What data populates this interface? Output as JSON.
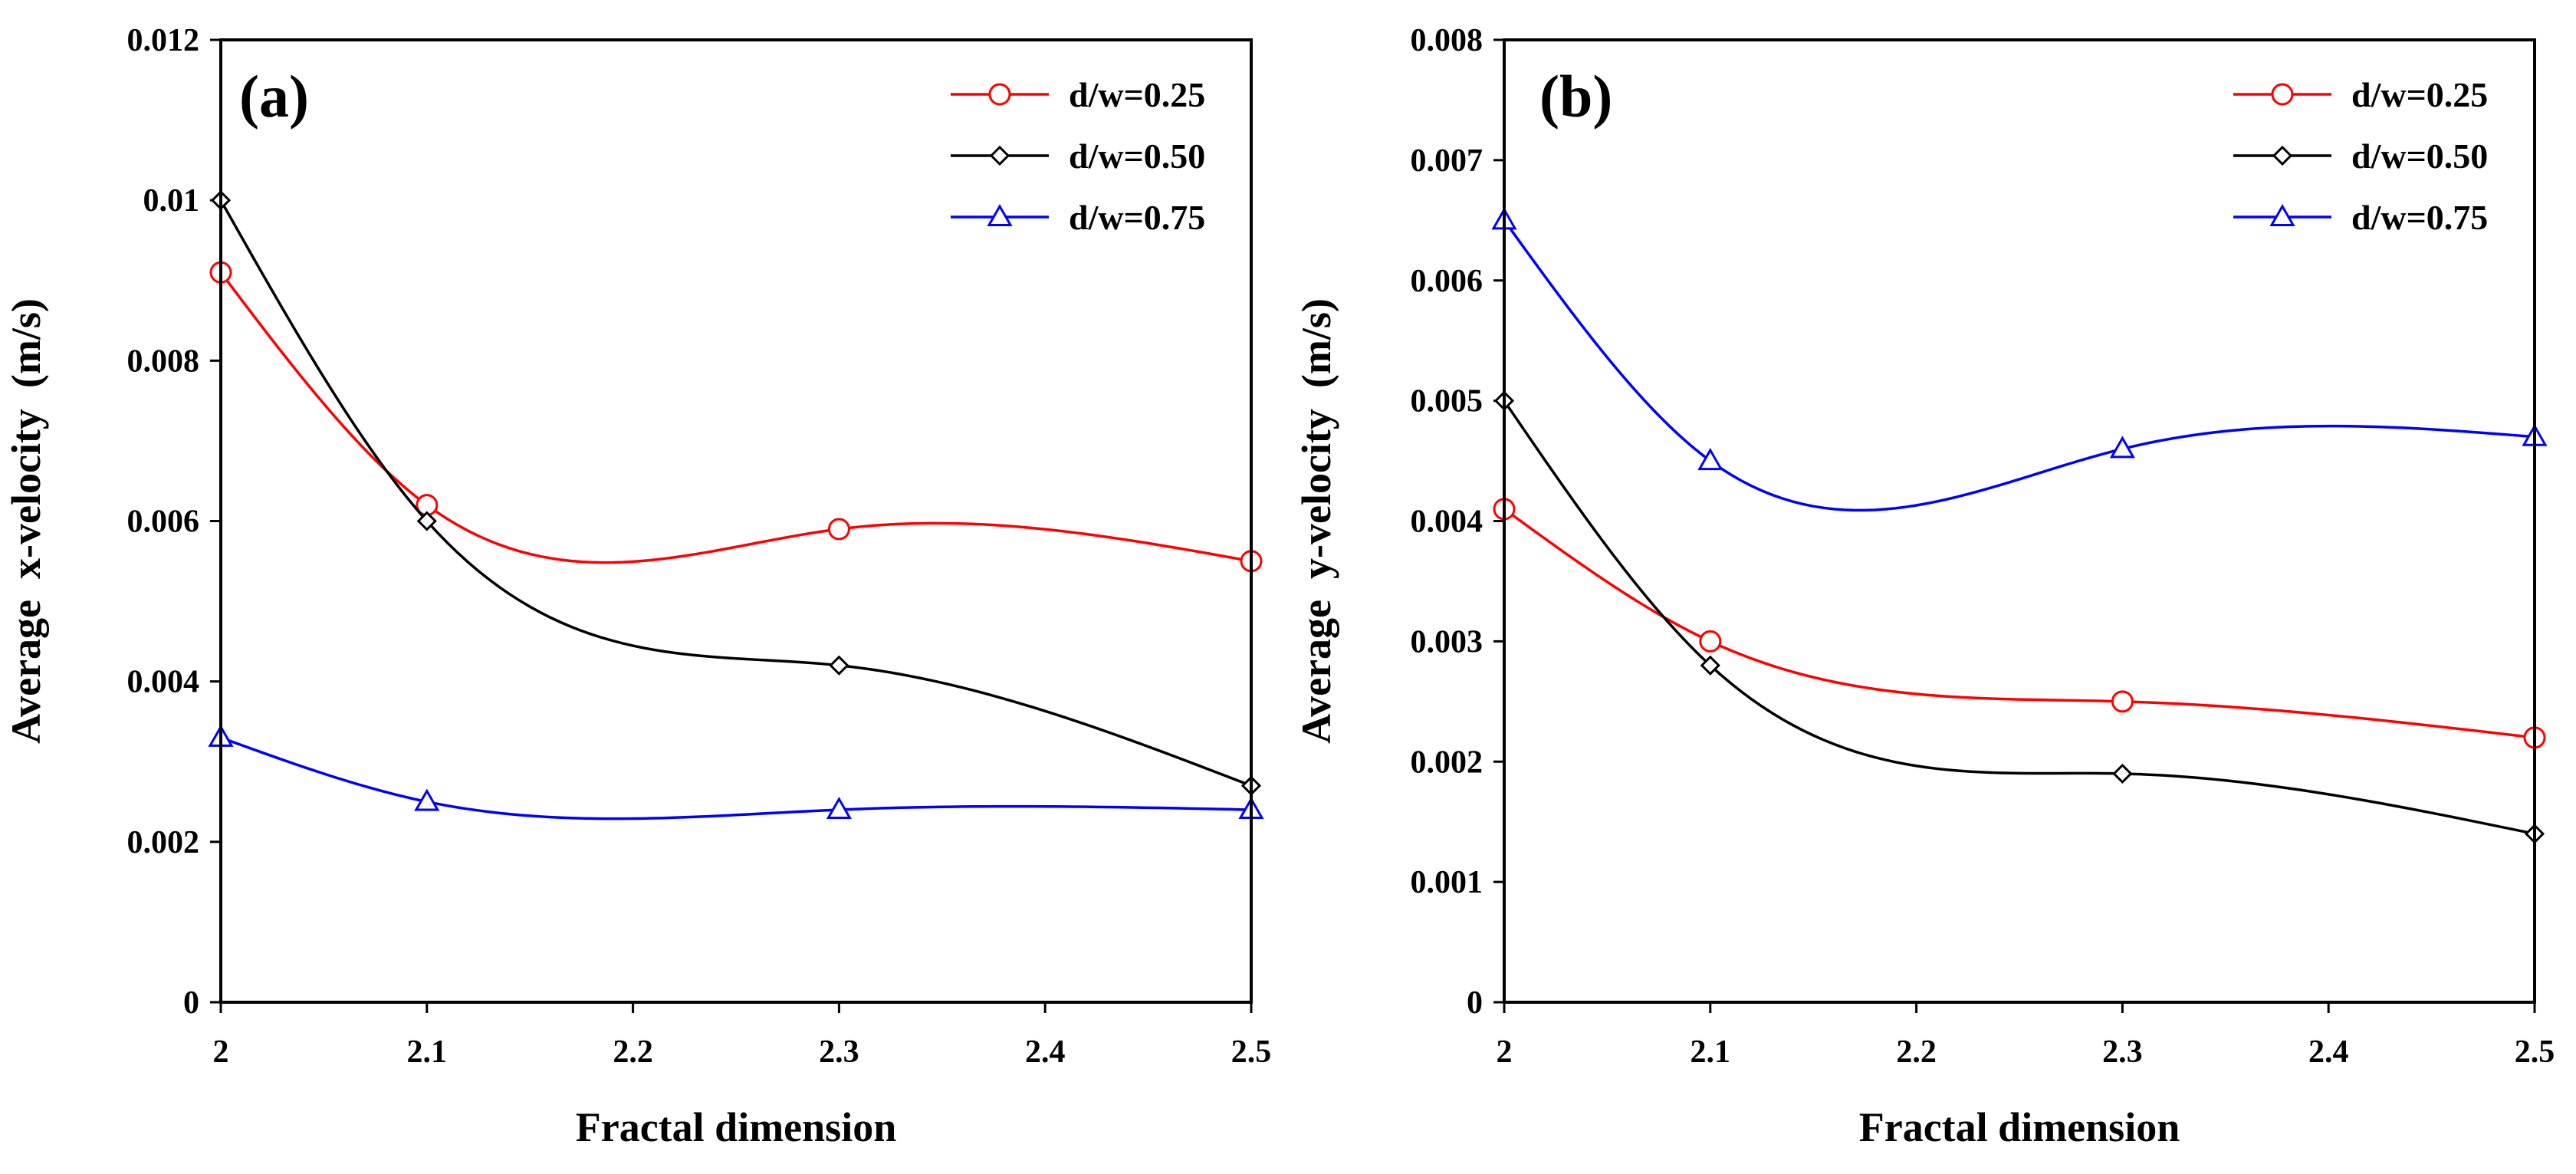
{
  "chart_data": [
    {
      "type": "line",
      "panel_label": "(a)",
      "xlabel": "Fractal dimension",
      "ylabel": "Average  x-velocity  (m/s)",
      "xlim": [
        2,
        2.5
      ],
      "ylim": [
        0,
        0.012
      ],
      "xticks": [
        "2",
        "2.1",
        "2.2",
        "2.3",
        "2.4",
        "2.5"
      ],
      "yticks": [
        "0",
        "0.002",
        "0.004",
        "0.006",
        "0.008",
        "0.01",
        "0.012"
      ],
      "legend_position": "top-right",
      "series": [
        {
          "name": "d/w=0.25",
          "color": "#ff0000",
          "marker": "circle",
          "x": [
            2,
            2.1,
            2.3,
            2.5
          ],
          "values": [
            0.0091,
            0.0062,
            0.0059,
            0.0055
          ]
        },
        {
          "name": "d/w=0.50",
          "color": "#000000",
          "marker": "diamond",
          "x": [
            2,
            2.1,
            2.3,
            2.5
          ],
          "values": [
            0.01,
            0.006,
            0.0042,
            0.0027
          ]
        },
        {
          "name": "d/w=0.75",
          "color": "#0000ff",
          "marker": "triangle",
          "x": [
            2,
            2.1,
            2.3,
            2.5
          ],
          "values": [
            0.0033,
            0.0025,
            0.0024,
            0.0024
          ]
        }
      ]
    },
    {
      "type": "line",
      "panel_label": "(b)",
      "xlabel": "Fractal dimension",
      "ylabel": "Average  y-velocity  (m/s)",
      "xlim": [
        2,
        2.5
      ],
      "ylim": [
        0,
        0.008
      ],
      "xticks": [
        "2",
        "2.1",
        "2.2",
        "2.3",
        "2.4",
        "2.5"
      ],
      "yticks": [
        "0",
        "0.001",
        "0.002",
        "0.003",
        "0.004",
        "0.005",
        "0.006",
        "0.007",
        "0.008"
      ],
      "legend_position": "top-right",
      "series": [
        {
          "name": "d/w=0.25",
          "color": "#ff0000",
          "marker": "circle",
          "x": [
            2,
            2.1,
            2.3,
            2.5
          ],
          "values": [
            0.0041,
            0.003,
            0.0025,
            0.0022
          ]
        },
        {
          "name": "d/w=0.50",
          "color": "#000000",
          "marker": "diamond",
          "x": [
            2,
            2.1,
            2.3,
            2.5
          ],
          "values": [
            0.005,
            0.0028,
            0.0019,
            0.0014
          ]
        },
        {
          "name": "d/w=0.75",
          "color": "#0000ff",
          "marker": "triangle",
          "x": [
            2,
            2.1,
            2.3,
            2.5
          ],
          "values": [
            0.0065,
            0.0045,
            0.0046,
            0.0047
          ]
        }
      ]
    }
  ]
}
